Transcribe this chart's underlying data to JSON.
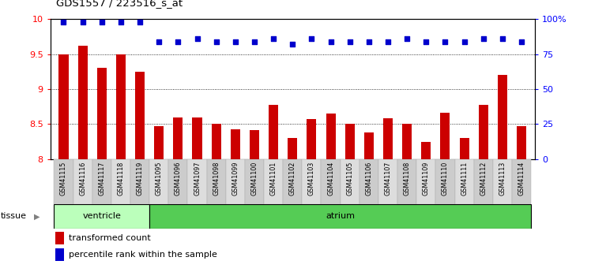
{
  "title": "GDS1557 / 223516_s_at",
  "categories": [
    "GSM41115",
    "GSM41116",
    "GSM41117",
    "GSM41118",
    "GSM41119",
    "GSM41095",
    "GSM41096",
    "GSM41097",
    "GSM41098",
    "GSM41099",
    "GSM41100",
    "GSM41101",
    "GSM41102",
    "GSM41103",
    "GSM41104",
    "GSM41105",
    "GSM41106",
    "GSM41107",
    "GSM41108",
    "GSM41109",
    "GSM41110",
    "GSM41111",
    "GSM41112",
    "GSM41113",
    "GSM41114"
  ],
  "bar_values": [
    9.5,
    9.62,
    9.3,
    9.5,
    9.25,
    8.47,
    8.6,
    8.6,
    8.5,
    8.43,
    8.42,
    8.78,
    8.3,
    8.57,
    8.65,
    8.5,
    8.38,
    8.58,
    8.5,
    8.25,
    8.66,
    8.3,
    8.78,
    9.2,
    8.47
  ],
  "percentile_values": [
    98,
    98,
    98,
    98,
    98,
    84,
    84,
    86,
    84,
    84,
    84,
    86,
    82,
    86,
    84,
    84,
    84,
    84,
    86,
    84,
    84,
    84,
    86,
    86,
    84
  ],
  "ventricle_count": 5,
  "atrium_count": 20,
  "bar_color": "#cc0000",
  "dot_color": "#0000cc",
  "ylim_left": [
    8.0,
    10.0
  ],
  "ylim_right": [
    0,
    100
  ],
  "yticks_left": [
    8.0,
    8.5,
    9.0,
    9.5,
    10.0
  ],
  "ytick_labels_left": [
    "8",
    "8.5",
    "9",
    "9.5",
    "10"
  ],
  "yticks_right": [
    0,
    25,
    50,
    75,
    100
  ],
  "ytick_labels_right": [
    "0",
    "25",
    "50",
    "75",
    "100%"
  ],
  "grid_values": [
    8.5,
    9.0,
    9.5
  ],
  "tissue_label": "tissue",
  "ventricle_label": "ventricle",
  "atrium_label": "atrium",
  "legend_bar_label": "transformed count",
  "legend_dot_label": "percentile rank within the sample",
  "ventricle_color": "#bbffbb",
  "atrium_color": "#55cc55",
  "tick_bg_odd": "#cccccc",
  "tick_bg_even": "#dddddd"
}
